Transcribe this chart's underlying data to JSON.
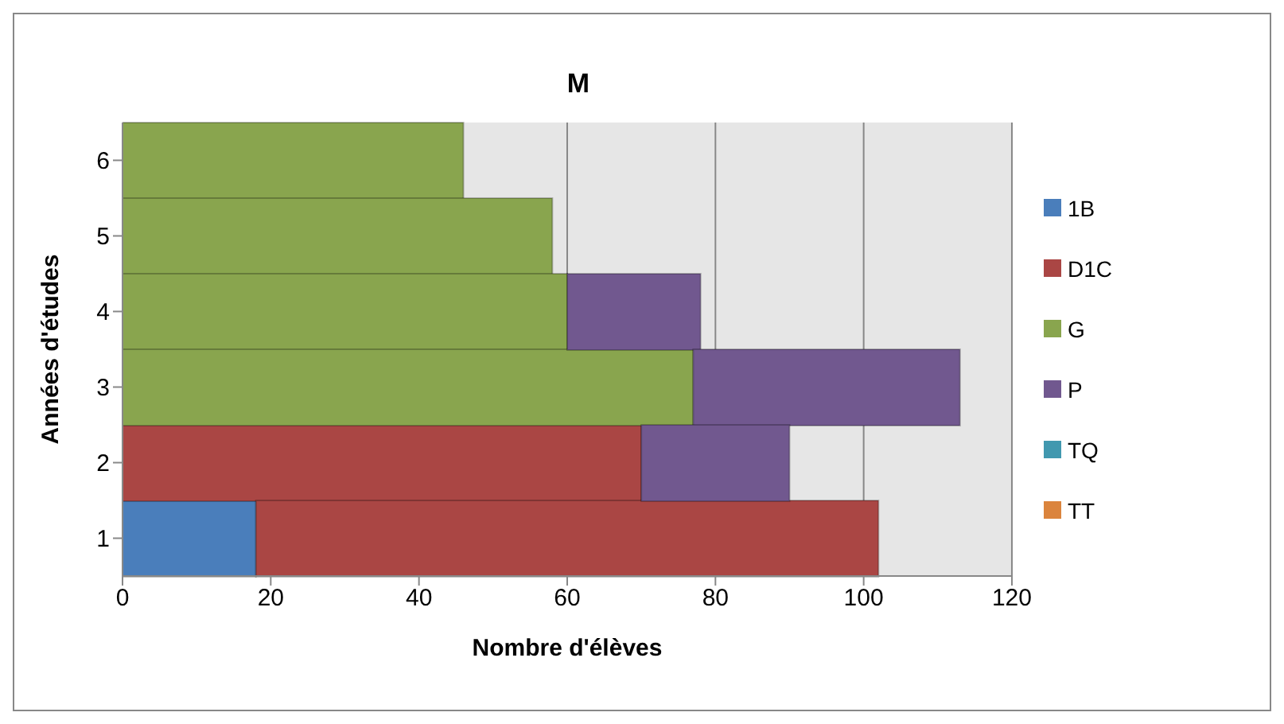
{
  "chart_data": {
    "type": "bar",
    "orientation": "horizontal",
    "stacked": true,
    "title": "M",
    "xlabel": "Nombre d'élèves",
    "ylabel": "Années d'études",
    "categories": [
      "6",
      "5",
      "4",
      "3",
      "2",
      "1"
    ],
    "series": [
      {
        "name": "1B",
        "color": "#4a7ebb",
        "values": [
          0,
          0,
          0,
          0,
          0,
          18
        ]
      },
      {
        "name": "D1C",
        "color": "#aa4644",
        "values": [
          0,
          0,
          0,
          0,
          70,
          84
        ]
      },
      {
        "name": "G",
        "color": "#89a54e",
        "values": [
          46,
          58,
          60,
          77,
          0,
          0
        ]
      },
      {
        "name": "P",
        "color": "#71588f",
        "values": [
          0,
          0,
          18,
          36,
          20,
          0
        ]
      },
      {
        "name": "TQ",
        "color": "#4198af",
        "values": [
          0,
          0,
          0,
          0,
          0,
          0
        ]
      },
      {
        "name": "TT",
        "color": "#db843d",
        "values": [
          0,
          0,
          0,
          0,
          0,
          0
        ]
      }
    ],
    "xlim": [
      0,
      120
    ],
    "xticks": [
      0,
      20,
      40,
      60,
      80,
      100,
      120
    ],
    "grid": "x",
    "legend": "right"
  }
}
